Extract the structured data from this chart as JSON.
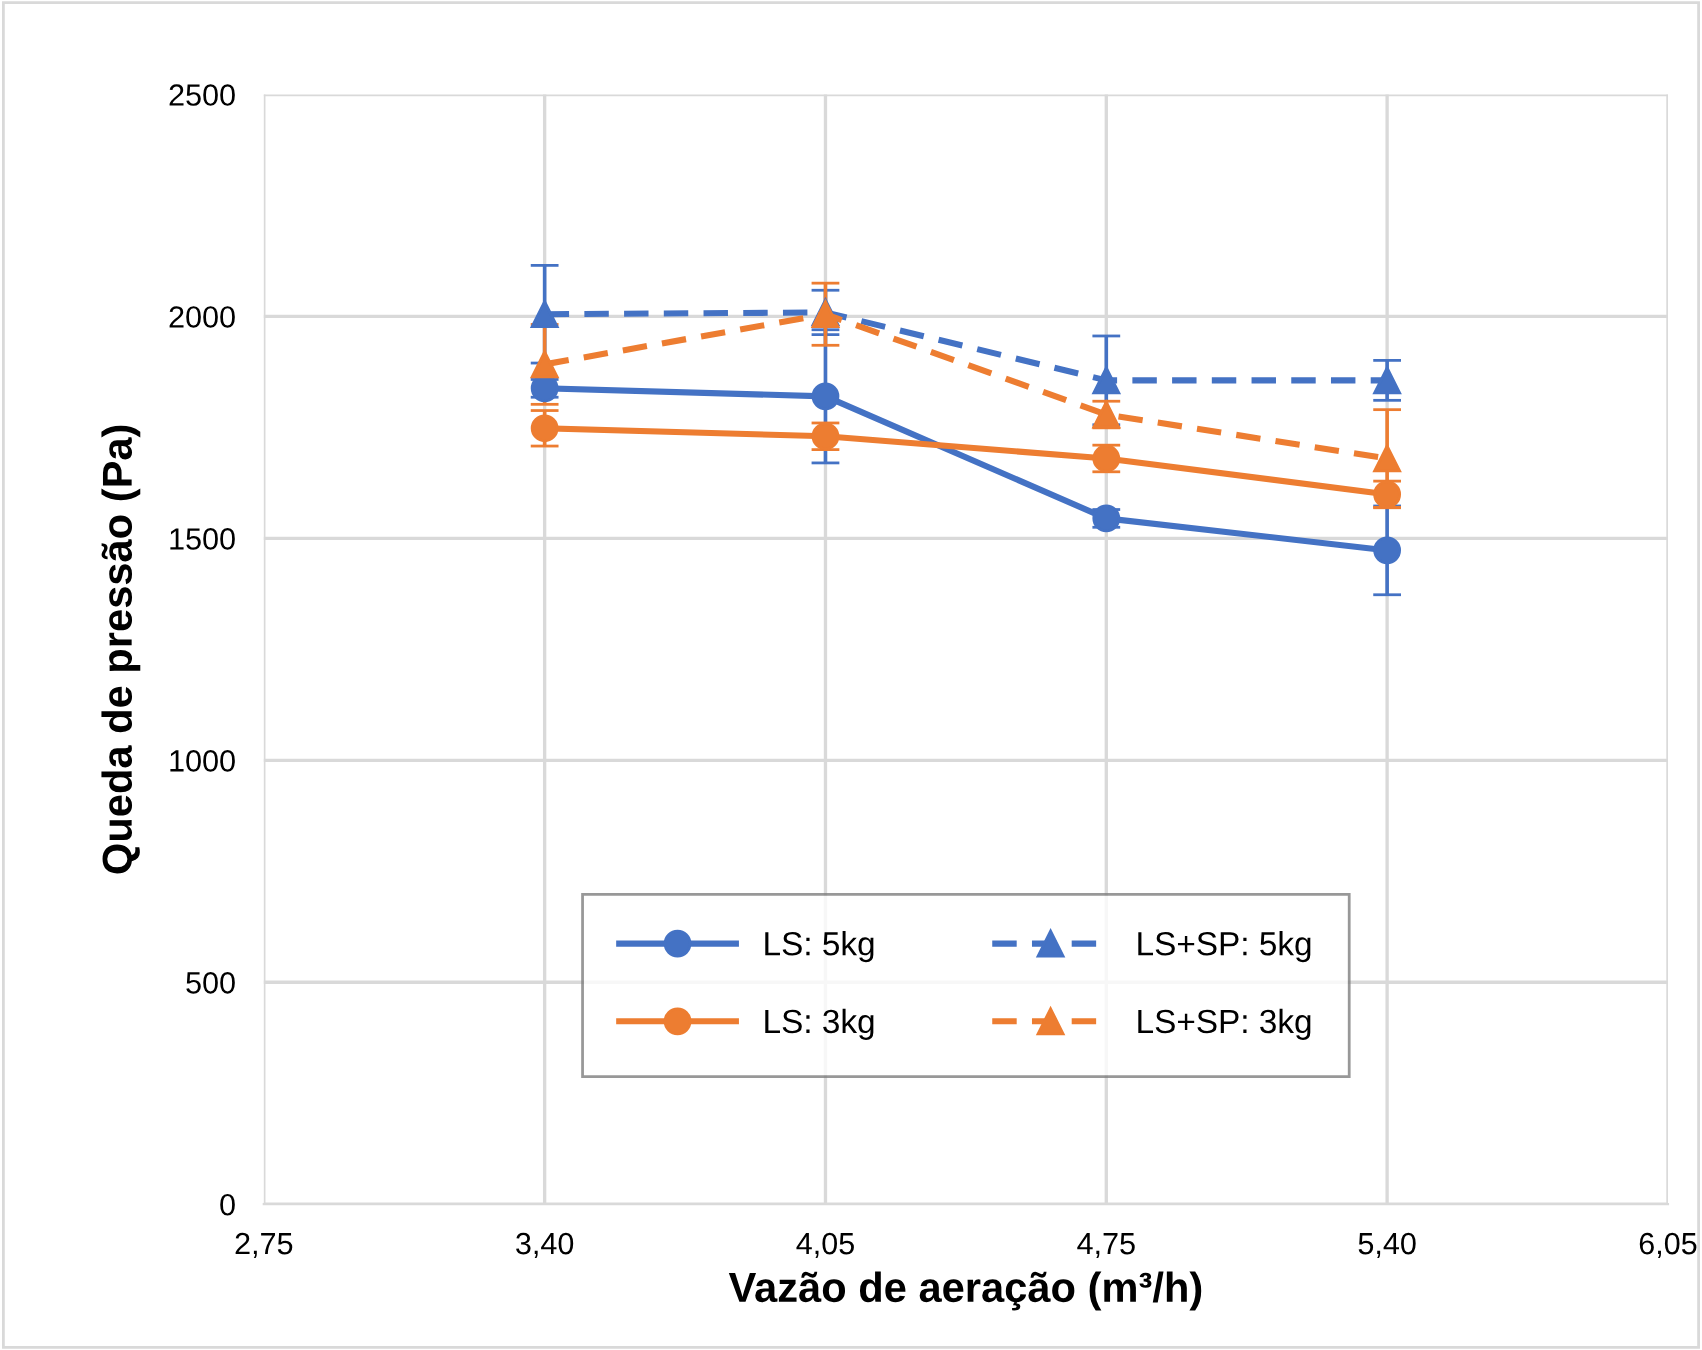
{
  "chart_data": {
    "type": "line",
    "xlabel": "Vazão de aeração (m³/h)",
    "ylabel": "Queda de pressão (Pa)",
    "categories": [
      "2,75",
      "3,40",
      "4,05",
      "4,75",
      "5,40",
      "6,05"
    ],
    "ylim": [
      0,
      2500
    ],
    "yticks": [
      0,
      500,
      1000,
      1500,
      2000,
      2500
    ],
    "grid": true,
    "legend": "bottom",
    "series": [
      {
        "name": "LS: 5kg",
        "color": "#4472c4",
        "marker": "circle",
        "line_style": "solid",
        "values": [
          null,
          1838,
          1820,
          1545,
          1473,
          null
        ],
        "errors": [
          null,
          20,
          150,
          20,
          100,
          null
        ]
      },
      {
        "name": "LS+SP: 5kg",
        "color": "#4472c4",
        "marker": "triangle",
        "line_style": "dashed",
        "values": [
          null,
          2005,
          2009,
          1856,
          1856,
          null
        ],
        "errors": [
          null,
          110,
          50,
          100,
          45,
          null
        ]
      },
      {
        "name": "LS: 3kg",
        "color": "#ed7d31",
        "marker": "circle",
        "line_style": "solid",
        "values": [
          null,
          1748,
          1730,
          1680,
          1599,
          null
        ],
        "errors": [
          null,
          40,
          30,
          30,
          30,
          null
        ]
      },
      {
        "name": "LS+SP: 3kg",
        "color": "#ed7d31",
        "marker": "triangle",
        "line_style": "dashed",
        "values": [
          null,
          1892,
          2005,
          1779,
          1680,
          null
        ],
        "errors": [
          null,
          90,
          70,
          30,
          110,
          null
        ]
      }
    ]
  }
}
